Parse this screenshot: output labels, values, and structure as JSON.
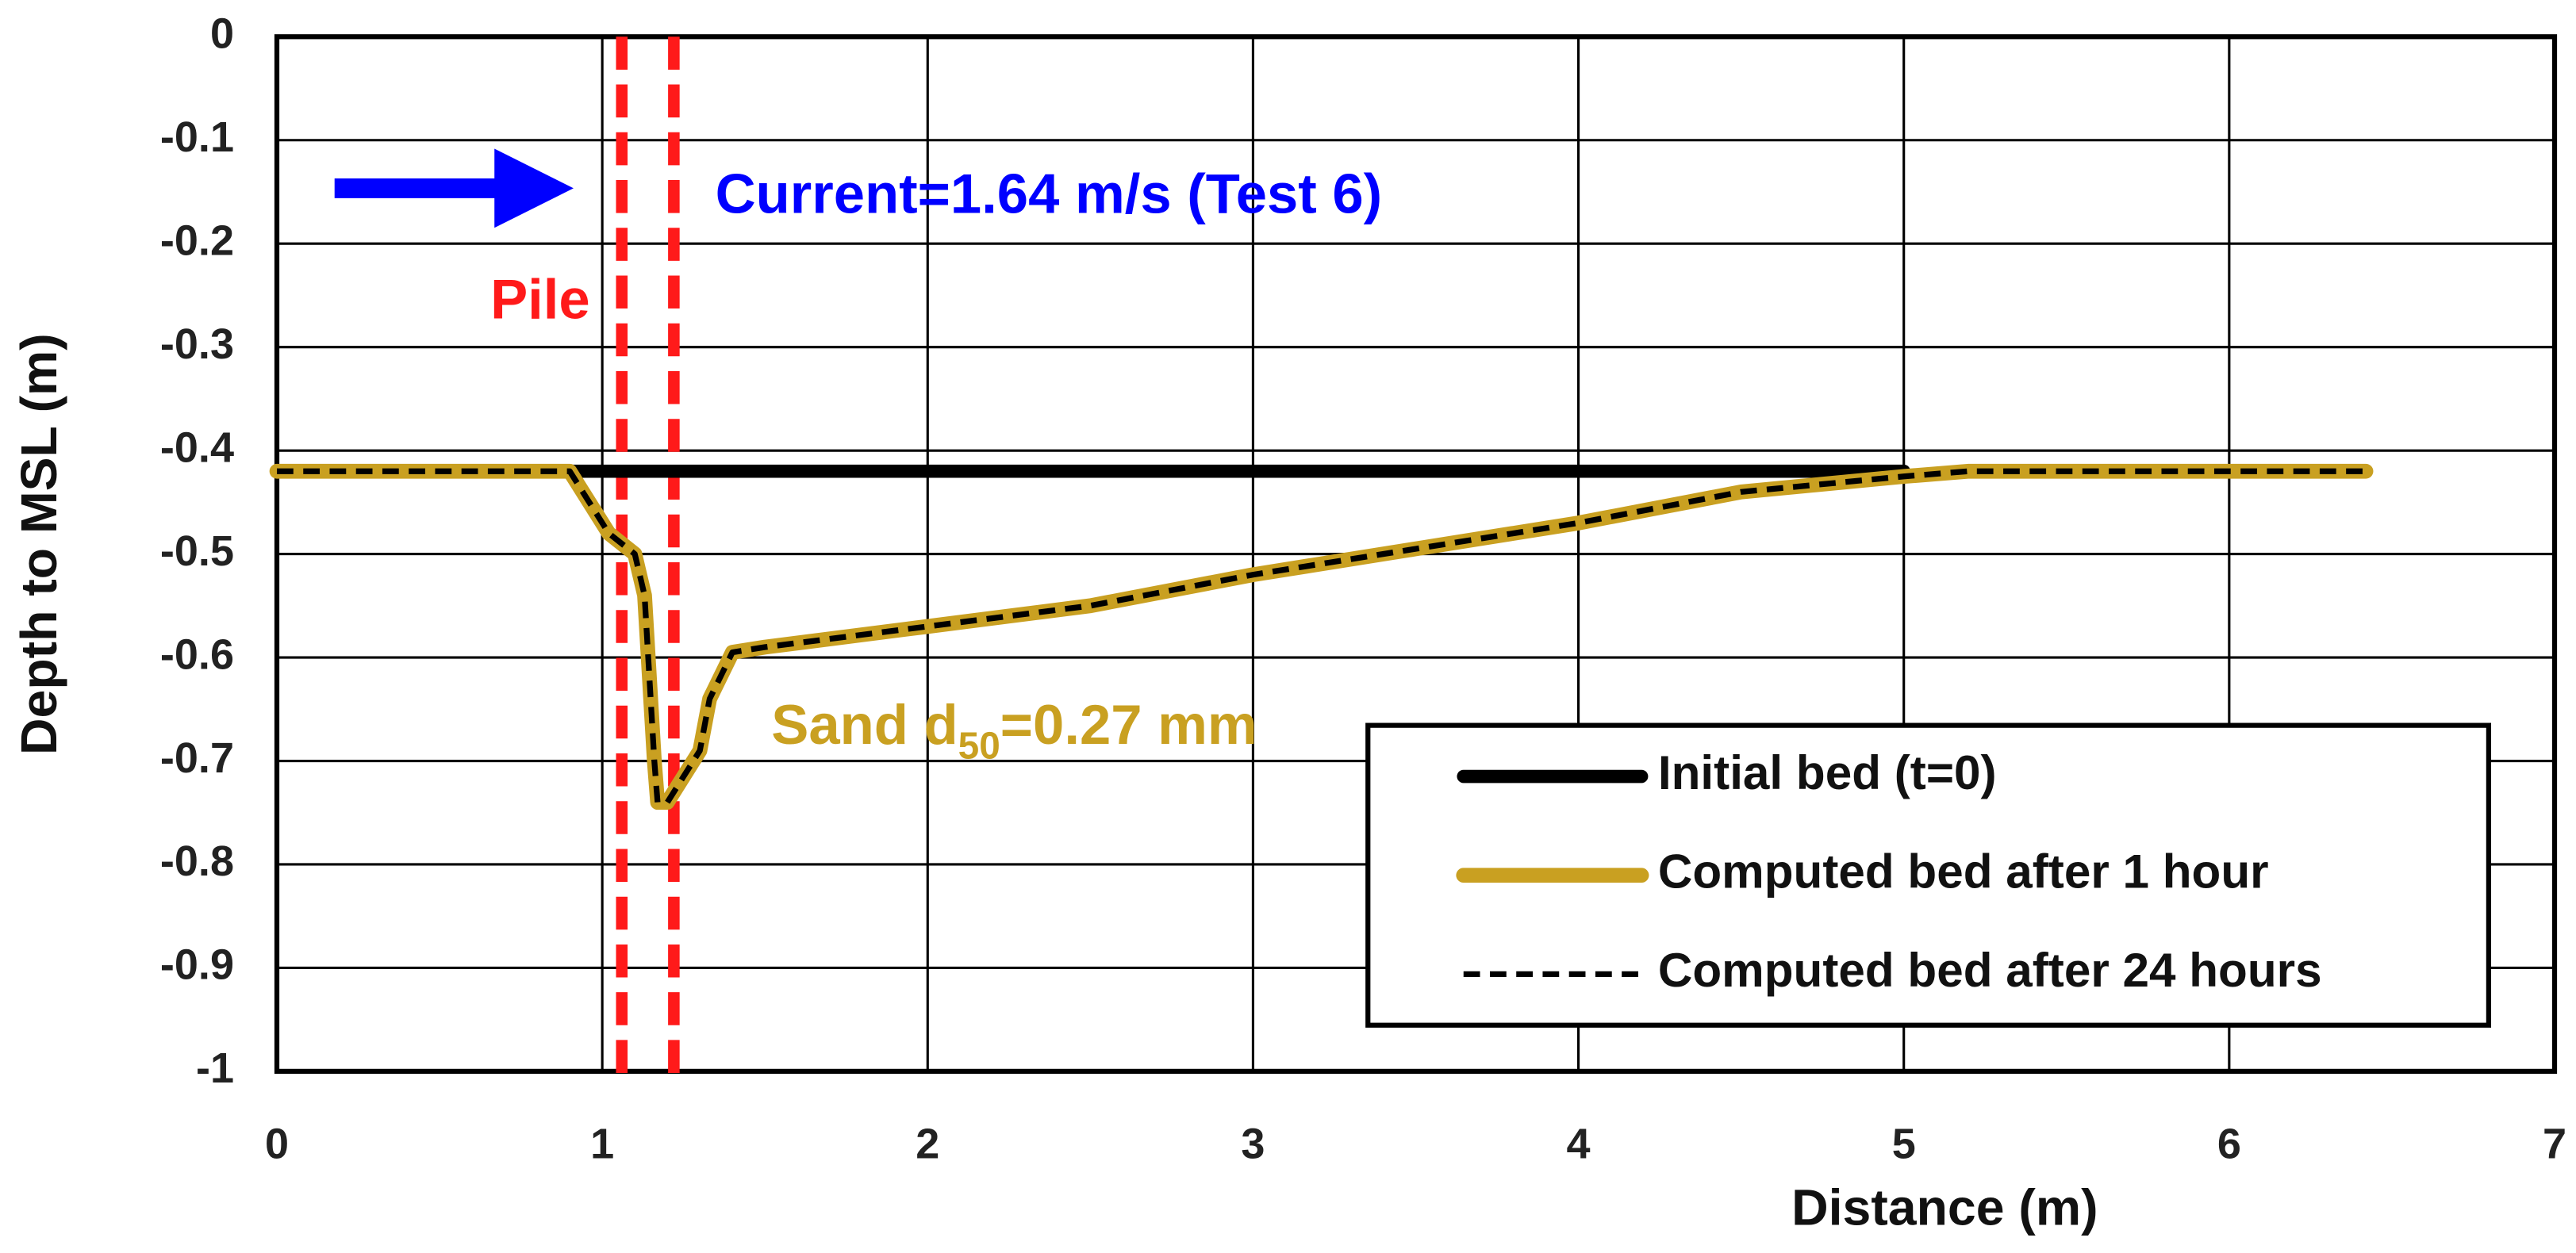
{
  "chart_data": {
    "type": "line",
    "x_label": "Distance (m)",
    "y_label": "Depth to MSL (m)",
    "xlim": [
      0,
      7
    ],
    "ylim": [
      -1,
      0
    ],
    "xticks": [
      0,
      1,
      2,
      3,
      4,
      5,
      6,
      7
    ],
    "yticks": [
      0,
      -0.1,
      -0.2,
      -0.3,
      -0.4,
      -0.5,
      -0.6,
      -0.7,
      -0.8,
      -0.9,
      -1
    ],
    "grid": true,
    "legend_position": "lower right",
    "series": [
      {
        "name": "Initial bed (t=0)",
        "color": "#000000",
        "width": 8,
        "dashed": false,
        "x": [
          0,
          5.0
        ],
        "values": [
          -0.42,
          -0.42
        ]
      },
      {
        "name": "Computed bed after 1 hour",
        "color": "#c9a021",
        "width": 9,
        "dashed": false,
        "x": [
          0,
          0.9,
          0.98,
          1.02,
          1.1,
          1.13,
          1.16,
          1.17,
          1.2,
          1.3,
          1.33,
          1.4,
          1.5,
          2,
          2.5,
          3,
          3.5,
          4,
          4.5,
          5,
          5.2,
          6.42
        ],
        "values": [
          -0.42,
          -0.42,
          -0.46,
          -0.48,
          -0.5,
          -0.54,
          -0.7,
          -0.74,
          -0.74,
          -0.69,
          -0.64,
          -0.595,
          -0.59,
          -0.57,
          -0.55,
          -0.52,
          -0.495,
          -0.47,
          -0.44,
          -0.425,
          -0.42,
          -0.42
        ]
      },
      {
        "name": "Computed bed after 24 hours",
        "color": "#000000",
        "width": 3.5,
        "dashed": true,
        "x": [
          0,
          0.9,
          0.98,
          1.02,
          1.1,
          1.13,
          1.16,
          1.17,
          1.2,
          1.3,
          1.33,
          1.4,
          1.5,
          2,
          2.5,
          3,
          3.5,
          4,
          4.5,
          5,
          5.2,
          6.42
        ],
        "values": [
          -0.42,
          -0.42,
          -0.46,
          -0.48,
          -0.5,
          -0.54,
          -0.7,
          -0.74,
          -0.74,
          -0.69,
          -0.64,
          -0.595,
          -0.59,
          -0.57,
          -0.55,
          -0.52,
          -0.495,
          -0.47,
          -0.44,
          -0.425,
          -0.42,
          -0.42
        ]
      }
    ],
    "pile": {
      "label": "Pile",
      "color": "#ff1a1a",
      "x": [
        1.06,
        1.22
      ]
    },
    "current_label": {
      "text": "Current=1.64 m/s (Test 6)",
      "color": "#0000ff"
    },
    "sand_label": {
      "text": "Sand d",
      "subscript": "50",
      "suffix": "=0.27 mm",
      "color": "#c9a021"
    }
  }
}
